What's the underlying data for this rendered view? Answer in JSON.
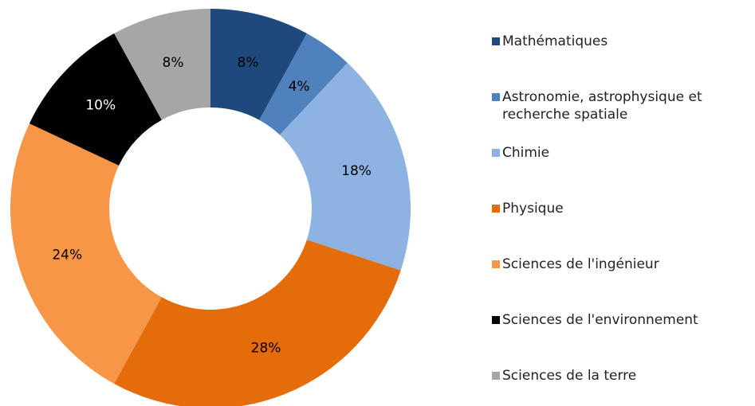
{
  "chart_data": {
    "type": "donut",
    "categories": [
      "Mathématiques",
      "Astronomie, astrophysique et recherche spatiale",
      "Chimie",
      "Physique",
      "Sciences de l'ingénieur",
      "Sciences de l'environnement",
      "Sciences de la terre"
    ],
    "values": [
      8,
      4,
      18,
      28,
      24,
      10,
      8
    ],
    "value_labels": [
      "8%",
      "4%",
      "18%",
      "28%",
      "24%",
      "10%",
      "8%"
    ],
    "colors": [
      "#1f497d",
      "#4f81bd",
      "#8db3e2",
      "#e46c0a",
      "#f79646",
      "#000000",
      "#a6a6a6"
    ],
    "label_colors": [
      "#000000",
      "#000000",
      "#000000",
      "#000000",
      "#000000",
      "#ffffff",
      "#000000"
    ],
    "legend": "right"
  }
}
